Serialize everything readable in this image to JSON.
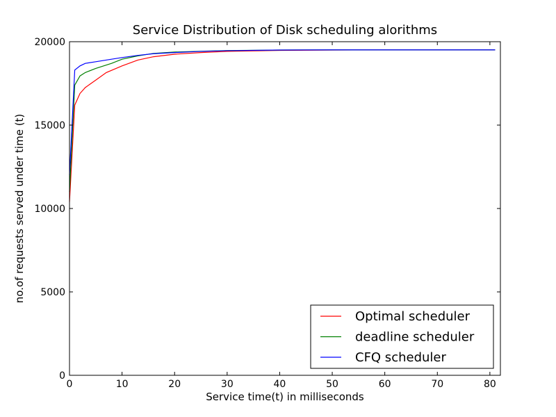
{
  "chart_data": {
    "type": "line",
    "title": "Service Distribution of Disk scheduling alorithms",
    "xlabel": "Service time(t) in milliseconds",
    "ylabel": "no.of requests served under time (t)",
    "xlim": [
      0,
      82
    ],
    "ylim": [
      0,
      20000
    ],
    "x_ticks": [
      0,
      10,
      20,
      30,
      40,
      50,
      60,
      70,
      80
    ],
    "y_ticks": [
      0,
      5000,
      10000,
      15000,
      20000
    ],
    "grid": false,
    "legend_position": "lower-right",
    "series": [
      {
        "name": "Optimal scheduler",
        "color": "#ff0000",
        "x": [
          0,
          1,
          2,
          3,
          5,
          7,
          10,
          13,
          16,
          20,
          25,
          30,
          40,
          50,
          60,
          70,
          81
        ],
        "y": [
          10400,
          16200,
          16900,
          17250,
          17700,
          18150,
          18550,
          18900,
          19100,
          19250,
          19350,
          19420,
          19480,
          19500,
          19510,
          19510,
          19510
        ]
      },
      {
        "name": "deadline scheduler",
        "color": "#008000",
        "x": [
          0,
          1,
          2,
          3,
          5,
          8,
          10,
          13,
          16,
          20,
          25,
          30,
          40,
          50,
          60,
          70,
          81
        ],
        "y": [
          11000,
          17400,
          17950,
          18150,
          18400,
          18700,
          18950,
          19150,
          19300,
          19380,
          19430,
          19470,
          19500,
          19510,
          19510,
          19510,
          19510
        ]
      },
      {
        "name": "CFQ scheduler",
        "color": "#0000ff",
        "x": [
          0,
          1,
          2,
          3,
          5,
          8,
          10,
          13,
          16,
          20,
          25,
          30,
          40,
          50,
          60,
          70,
          81
        ],
        "y": [
          12000,
          18300,
          18550,
          18700,
          18800,
          18950,
          19050,
          19180,
          19280,
          19350,
          19420,
          19460,
          19500,
          19510,
          19510,
          19510,
          19510
        ]
      }
    ]
  }
}
